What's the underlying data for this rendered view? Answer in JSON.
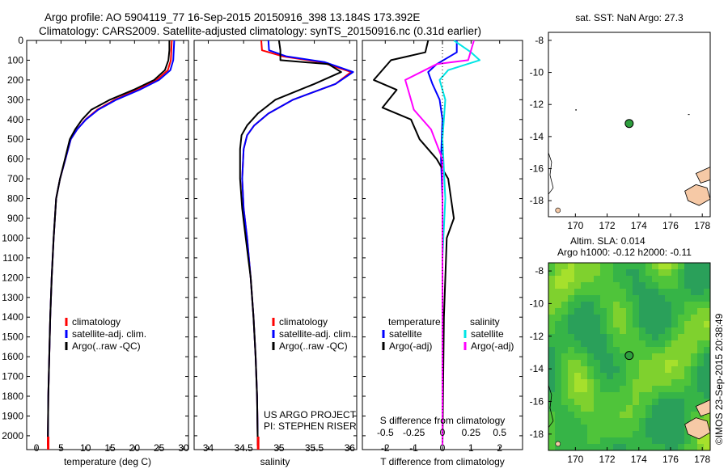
{
  "title_line1": "Argo profile: AO 5904119_77 16-Sep-2015 20150916_398 13.184S 173.392E",
  "title_line2": "Climatology: CARS2009. Satellite-adjusted climatology: synTS_20150916.nc (0.31d earlier)",
  "credit": "©IMOS 23-Sep-2015 20:38:49",
  "colors": {
    "climatology": "#ff0000",
    "satellite": "#0000ff",
    "argo": "#000000",
    "salinity_satellite": "#00e5e5",
    "salinity_argo": "#ff00ff",
    "map_land": "#f6c9a6",
    "ocean_green": "#3dc43d",
    "argo_marker": "#2e9e3e"
  },
  "chart_data": [
    {
      "id": "temperature",
      "type": "line",
      "xlabel": "temperature (deg C)",
      "ylabel": "",
      "xlim": [
        -2,
        31
      ],
      "ylim": [
        2070,
        0
      ],
      "y_inverted": true,
      "xticks": [
        0,
        5,
        10,
        15,
        20,
        25,
        30
      ],
      "yticks": [
        0,
        100,
        200,
        300,
        400,
        500,
        600,
        700,
        800,
        900,
        1000,
        1100,
        1200,
        1300,
        1400,
        1500,
        1600,
        1700,
        1800,
        1900,
        2000
      ],
      "legend": [
        "climatology",
        "satellite-adj. clim.",
        "Argo(..raw -QC)"
      ],
      "legend_position": "lower-center",
      "series": [
        {
          "name": "climatology",
          "color": "#ff0000",
          "x": [
            27.6,
            27.5,
            27.4,
            26.8,
            24.5,
            20.5,
            16.0,
            12.4,
            10.0,
            8.3,
            7.0,
            5.9,
            4.8,
            4.0,
            3.5,
            3.1,
            2.8,
            2.6,
            2.4,
            2.3
          ],
          "y": [
            0,
            50,
            100,
            150,
            200,
            250,
            300,
            350,
            400,
            450,
            500,
            600,
            700,
            800,
            1000,
            1200,
            1400,
            1600,
            1800,
            2050
          ]
        },
        {
          "name": "satellite-adj. clim.",
          "color": "#0000ff",
          "x": [
            28.1,
            28.0,
            27.9,
            27.3,
            25.0,
            21.0,
            16.3,
            12.6,
            10.1,
            8.3,
            7.0,
            5.9,
            4.8,
            4.0,
            3.5,
            3.1,
            2.8,
            2.6,
            2.4,
            2.3
          ],
          "y": [
            0,
            50,
            100,
            150,
            200,
            250,
            300,
            350,
            400,
            450,
            500,
            600,
            700,
            800,
            1000,
            1200,
            1400,
            1600,
            1800,
            2050
          ]
        },
        {
          "name": "Argo(..raw -QC)",
          "color": "#000000",
          "x": [
            27.1,
            27.1,
            26.9,
            26.2,
            24.0,
            19.8,
            15.0,
            11.2,
            9.3,
            7.9,
            6.8,
            5.8,
            4.8,
            4.0,
            3.5,
            3.1,
            2.8,
            2.6,
            2.4,
            2.3
          ],
          "y": [
            0,
            50,
            100,
            150,
            200,
            250,
            300,
            350,
            400,
            450,
            500,
            600,
            700,
            800,
            1000,
            1200,
            1400,
            1600,
            1800,
            2050
          ]
        }
      ]
    },
    {
      "id": "salinity",
      "type": "line",
      "xlabel": "salinity",
      "xlim": [
        33.8,
        36.1
      ],
      "ylim": [
        2070,
        0
      ],
      "y_inverted": true,
      "xticks": [
        34,
        34.5,
        35,
        35.5,
        36
      ],
      "legend": [
        "climatology",
        "satellite-adj. clim.",
        "Argo(..raw -QC)"
      ],
      "legend_position": "lower-center",
      "annotation": [
        "US ARGO PROJECT",
        "PI: STEPHEN RISER"
      ],
      "series": [
        {
          "name": "climatology",
          "color": "#ff0000",
          "x": [
            34.75,
            34.76,
            35.05,
            35.6,
            36.02,
            35.8,
            35.2,
            34.85,
            34.65,
            34.55,
            34.5,
            34.48,
            34.5,
            34.55,
            34.6,
            34.64,
            34.67,
            34.69,
            34.7
          ],
          "y": [
            0,
            50,
            80,
            110,
            160,
            220,
            300,
            370,
            430,
            480,
            550,
            700,
            850,
            1000,
            1200,
            1400,
            1600,
            1800,
            2050
          ]
        },
        {
          "name": "satellite-adj. clim.",
          "color": "#0000ff",
          "x": [
            34.85,
            34.86,
            35.1,
            35.65,
            36.05,
            35.8,
            35.2,
            34.85,
            34.65,
            34.55,
            34.5,
            34.48,
            34.5,
            34.55,
            34.6,
            34.64,
            34.67,
            34.69,
            34.7
          ],
          "y": [
            0,
            50,
            80,
            110,
            160,
            220,
            300,
            370,
            430,
            480,
            550,
            700,
            850,
            1000,
            1200,
            1400,
            1600,
            1800,
            2050
          ]
        },
        {
          "name": "Argo(..raw -QC)",
          "color": "#000000",
          "x": [
            35.0,
            35.02,
            35.02,
            35.7,
            35.88,
            35.5,
            34.95,
            34.7,
            34.55,
            34.47,
            34.45,
            34.45,
            34.48,
            34.53,
            34.6,
            34.64,
            34.67,
            34.69,
            34.7
          ],
          "y": [
            0,
            50,
            100,
            120,
            160,
            220,
            300,
            370,
            430,
            480,
            550,
            700,
            850,
            1000,
            1200,
            1400,
            1600,
            1800,
            2050
          ]
        }
      ]
    },
    {
      "id": "difference",
      "type": "line",
      "xlabel": "T difference from climatology",
      "xlabel_top": "S difference from climatology",
      "xlim": [
        -2.8,
        2.8
      ],
      "ylim": [
        2070,
        0
      ],
      "y_inverted": true,
      "xticks": [
        -2,
        -1,
        0,
        1,
        2
      ],
      "xticks_top_labels": [
        "-0.5",
        "-0.25",
        "0",
        "0.25",
        "0.5"
      ],
      "xticks_top_positions": [
        -2,
        -1,
        0,
        1,
        2
      ],
      "zero_line": "dotted",
      "legend_left_title": "temperature",
      "legend_right_title": "salinity",
      "legend": [
        "satellite",
        "Argo(-adj)",
        "satellite",
        "Argo(-adj)"
      ],
      "series": [
        {
          "name": "temperature satellite",
          "color": "#0000ff",
          "x": [
            0.5,
            0.5,
            -0.2,
            -0.5,
            -0.35,
            -0.1,
            0.0,
            -0.05,
            0.0,
            0.0,
            0.0,
            0.0,
            0.0
          ],
          "y": [
            0,
            60,
            120,
            160,
            220,
            300,
            400,
            600,
            800,
            1000,
            1400,
            1800,
            2050
          ]
        },
        {
          "name": "temperature Argo(-adj)",
          "color": "#000000",
          "x": [
            -0.5,
            -0.6,
            -1.8,
            -2.4,
            -1.6,
            -2.1,
            -1.1,
            -0.8,
            -0.2,
            0.2,
            0.3,
            0.4,
            0.15,
            0.05,
            0.0
          ],
          "y": [
            0,
            60,
            100,
            200,
            250,
            340,
            400,
            500,
            600,
            700,
            800,
            900,
            1000,
            1400,
            2050
          ]
        },
        {
          "name": "salinity satellite",
          "color": "#00e5e5",
          "x": [
            0.4,
            1.0,
            1.3,
            0.2,
            -0.1,
            0.1,
            0.0,
            0.1,
            0.0,
            0.0,
            0.0
          ],
          "y": [
            0,
            60,
            100,
            150,
            200,
            300,
            500,
            800,
            1100,
            1600,
            2050
          ]
        },
        {
          "name": "salinity Argo(-adj)",
          "color": "#ff00ff",
          "x": [
            1.1,
            0.9,
            -0.2,
            -1.3,
            -1.2,
            -1.0,
            -0.4,
            0.0,
            0.0,
            0.0
          ],
          "y": [
            0,
            100,
            120,
            200,
            250,
            350,
            450,
            600,
            1000,
            2050
          ]
        }
      ]
    },
    {
      "id": "sst_map",
      "type": "scatter",
      "title": "sat. SST: NaN Argo: 27.3",
      "xlim": [
        168.3,
        178.5
      ],
      "ylim": [
        -19.0,
        -7.5
      ],
      "xticks": [
        170,
        172,
        174,
        176,
        178
      ],
      "yticks": [
        -8,
        -10,
        -12,
        -14,
        -16,
        -18
      ],
      "argo_position": {
        "lon": 173.392,
        "lat": -13.184
      }
    },
    {
      "id": "sla_map",
      "type": "heatmap",
      "title_line1": "Altim. SLA: 0.014",
      "title_line2": "Argo h1000: -0.12 h2000: -0.11",
      "xlim": [
        168.3,
        178.5
      ],
      "ylim": [
        -19.0,
        -7.5
      ],
      "xticks": [
        170,
        172,
        174,
        176,
        178
      ],
      "yticks": [
        -8,
        -10,
        -12,
        -14,
        -16,
        -18
      ],
      "argo_position": {
        "lon": 173.392,
        "lat": -13.184
      }
    }
  ]
}
